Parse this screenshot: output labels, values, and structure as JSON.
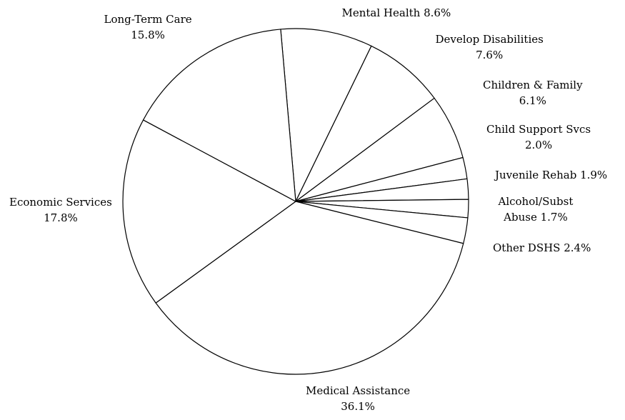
{
  "chart_data": {
    "type": "pie",
    "start_angle_deg": -5,
    "direction": "clockwise",
    "slices": [
      {
        "name": "Mental Health",
        "value": 8.6,
        "label_lines": [
          "Mental Health 8.6%"
        ]
      },
      {
        "name": "Develop Disabilities",
        "value": 7.6,
        "label_lines": [
          "Develop Disabilities",
          "7.6%"
        ]
      },
      {
        "name": "Children & Family",
        "value": 6.1,
        "label_lines": [
          "Children & Family",
          "6.1%"
        ]
      },
      {
        "name": "Child Support Svcs",
        "value": 2.0,
        "label_lines": [
          "Child Support Svcs",
          "2.0%"
        ]
      },
      {
        "name": "Juvenile Rehab",
        "value": 1.9,
        "label_lines": [
          "Juvenile Rehab 1.9%"
        ]
      },
      {
        "name": "Alcohol/Subst Abuse",
        "value": 1.7,
        "label_lines": [
          "Alcohol/Subst",
          "Abuse 1.7%"
        ]
      },
      {
        "name": "Other DSHS",
        "value": 2.4,
        "label_lines": [
          "Other DSHS 2.4%"
        ]
      },
      {
        "name": "Medical Assistance",
        "value": 36.1,
        "label_lines": [
          "Medical Assistance",
          "36.1%"
        ]
      },
      {
        "name": "Economic Services",
        "value": 17.8,
        "label_lines": [
          "Economic Services",
          "17.8%"
        ]
      },
      {
        "name": "Long-Term Care",
        "value": 15.8,
        "label_lines": [
          "Long-Term Care",
          "15.8%"
        ]
      }
    ],
    "fill": "#ffffff",
    "stroke": "#000000"
  }
}
